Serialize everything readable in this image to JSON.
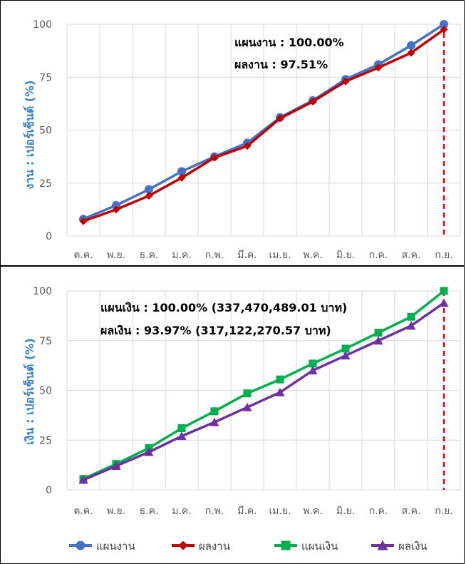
{
  "chart_data": [
    {
      "type": "line",
      "categories": [
        "ต.ค.",
        "พ.ย.",
        "ธ.ค.",
        "ม.ค.",
        "ก.พ.",
        "มี.ค.",
        "เม.ย.",
        "พ.ค.",
        "มิ.ย.",
        "ก.ค.",
        "ส.ค.",
        "ก.ย."
      ],
      "ylabel": "งาน : เปอร์เซ็นต์ (%)",
      "ylim": [
        0,
        100
      ],
      "yticks": [
        "0",
        "25",
        "50",
        "75",
        "100"
      ],
      "grid": true,
      "annotations": [
        "แผนงาน : 100.00%",
        "ผลงาน : 97.51%"
      ],
      "series": [
        {
          "name": "แผนงาน",
          "color": "#4472c4",
          "marker": "circle",
          "values": [
            8,
            14.5,
            22,
            30.5,
            37.5,
            44,
            56,
            64,
            74,
            81,
            90,
            100
          ]
        },
        {
          "name": "ผลงาน",
          "color": "#c00000",
          "marker": "diamond",
          "values": [
            7,
            12.5,
            19,
            27.5,
            37,
            42.5,
            55.5,
            63.5,
            73,
            79.5,
            86.5,
            97.51
          ]
        }
      ]
    },
    {
      "type": "line",
      "categories": [
        "ต.ค.",
        "พ.ย.",
        "ธ.ค.",
        "ม.ค.",
        "ก.พ.",
        "มี.ค.",
        "เม.ย.",
        "พ.ค.",
        "มิ.ย.",
        "ก.ค.",
        "ส.ค.",
        "ก.ย."
      ],
      "ylabel": "เงิน : เปอร์เซ็นต์ (%)",
      "ylim": [
        0,
        100
      ],
      "yticks": [
        "0",
        "25",
        "50",
        "75",
        "100"
      ],
      "grid": true,
      "annotations": [
        "แผนเงิน : 100.00% (337,470,489.01 บาท)",
        "ผลเงิน : 93.97% (317,122,270.57 บาท)"
      ],
      "series": [
        {
          "name": "แผนเงิน",
          "color": "#00b050",
          "marker": "square",
          "values": [
            5.5,
            13,
            21,
            31,
            39.5,
            48.5,
            55.5,
            63.5,
            71,
            79,
            87,
            100
          ]
        },
        {
          "name": "ผลเงิน",
          "color": "#7030a0",
          "marker": "triangle",
          "values": [
            5,
            12,
            19,
            27,
            34,
            41.5,
            49,
            60,
            67.5,
            75,
            82.5,
            93.97
          ]
        }
      ]
    }
  ],
  "legend": {
    "position": "bottom",
    "items": [
      {
        "label": "แผนงาน",
        "color": "#4472c4",
        "marker": "circle"
      },
      {
        "label": "ผลงาน",
        "color": "#c00000",
        "marker": "diamond"
      },
      {
        "label": "แผนเงิน",
        "color": "#00b050",
        "marker": "square"
      },
      {
        "label": "ผลเงิน",
        "color": "#7030a0",
        "marker": "triangle"
      }
    ]
  },
  "colors": {
    "grid": "#d9d9d9",
    "axis_label": "#3b82c4",
    "tick": "#595959",
    "dashed_marker": "#e00000"
  }
}
